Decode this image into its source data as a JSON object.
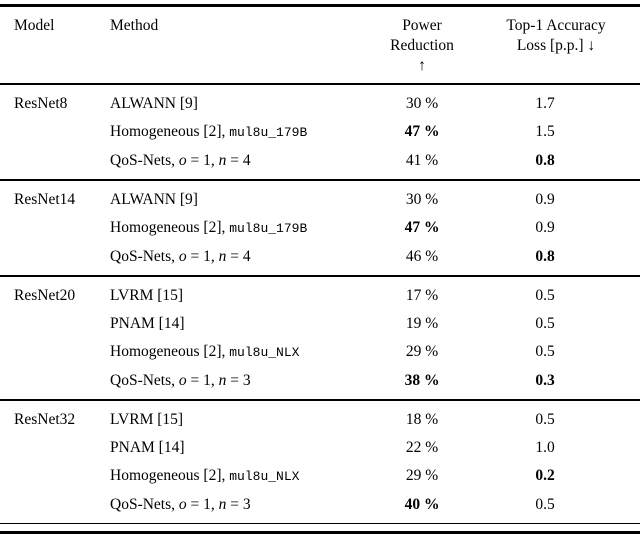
{
  "table": {
    "header": {
      "model": "Model",
      "method": "Method",
      "power_lines": [
        "Power",
        "Reduction",
        "↑"
      ],
      "loss_lines": [
        "Top-1 Accuracy",
        "Loss [p.p.] ↓"
      ]
    },
    "groups": [
      {
        "model": "ResNet8",
        "rows": [
          {
            "method": [
              {
                "t": "ALWANN [9]"
              }
            ],
            "power": "30 %",
            "power_bold": false,
            "loss": "1.7",
            "loss_bold": false
          },
          {
            "method": [
              {
                "t": "Homogeneous [2], "
              },
              {
                "t": "mul8u_179B",
                "s": "mono"
              }
            ],
            "power": "47 %",
            "power_bold": true,
            "loss": "1.5",
            "loss_bold": false
          },
          {
            "method": [
              {
                "t": "QoS-Nets, "
              },
              {
                "t": "o",
                "s": "italic"
              },
              {
                "t": " = 1, "
              },
              {
                "t": "n",
                "s": "italic"
              },
              {
                "t": " = 4"
              }
            ],
            "power": "41 %",
            "power_bold": false,
            "loss": "0.8",
            "loss_bold": true
          }
        ]
      },
      {
        "model": "ResNet14",
        "rows": [
          {
            "method": [
              {
                "t": "ALWANN [9]"
              }
            ],
            "power": "30 %",
            "power_bold": false,
            "loss": "0.9",
            "loss_bold": false
          },
          {
            "method": [
              {
                "t": "Homogeneous [2], "
              },
              {
                "t": "mul8u_179B",
                "s": "mono"
              }
            ],
            "power": "47 %",
            "power_bold": true,
            "loss": "0.9",
            "loss_bold": false
          },
          {
            "method": [
              {
                "t": "QoS-Nets, "
              },
              {
                "t": "o",
                "s": "italic"
              },
              {
                "t": " = 1, "
              },
              {
                "t": "n",
                "s": "italic"
              },
              {
                "t": " = 4"
              }
            ],
            "power": "46 %",
            "power_bold": false,
            "loss": "0.8",
            "loss_bold": true
          }
        ]
      },
      {
        "model": "ResNet20",
        "rows": [
          {
            "method": [
              {
                "t": "LVRM [15]"
              }
            ],
            "power": "17 %",
            "power_bold": false,
            "loss": "0.5",
            "loss_bold": false
          },
          {
            "method": [
              {
                "t": "PNAM [14]"
              }
            ],
            "power": "19 %",
            "power_bold": false,
            "loss": "0.5",
            "loss_bold": false
          },
          {
            "method": [
              {
                "t": "Homogeneous [2], "
              },
              {
                "t": "mul8u_NLX",
                "s": "mono"
              }
            ],
            "power": "29 %",
            "power_bold": false,
            "loss": "0.5",
            "loss_bold": false
          },
          {
            "method": [
              {
                "t": "QoS-Nets, "
              },
              {
                "t": "o",
                "s": "italic"
              },
              {
                "t": " = 1, "
              },
              {
                "t": "n",
                "s": "italic"
              },
              {
                "t": " = 3"
              }
            ],
            "power": "38 %",
            "power_bold": true,
            "loss": "0.3",
            "loss_bold": true
          }
        ]
      },
      {
        "model": "ResNet32",
        "rows": [
          {
            "method": [
              {
                "t": "LVRM [15]"
              }
            ],
            "power": "18 %",
            "power_bold": false,
            "loss": "0.5",
            "loss_bold": false
          },
          {
            "method": [
              {
                "t": "PNAM [14]"
              }
            ],
            "power": "22 %",
            "power_bold": false,
            "loss": "1.0",
            "loss_bold": false
          },
          {
            "method": [
              {
                "t": "Homogeneous [2], "
              },
              {
                "t": "mul8u_NLX",
                "s": "mono"
              }
            ],
            "power": "29 %",
            "power_bold": false,
            "loss": "0.2",
            "loss_bold": true
          },
          {
            "method": [
              {
                "t": "QoS-Nets, "
              },
              {
                "t": "o",
                "s": "italic"
              },
              {
                "t": " = 1, "
              },
              {
                "t": "n",
                "s": "italic"
              },
              {
                "t": " = 3"
              }
            ],
            "power": "40 %",
            "power_bold": true,
            "loss": "0.5",
            "loss_bold": false
          }
        ]
      }
    ]
  }
}
